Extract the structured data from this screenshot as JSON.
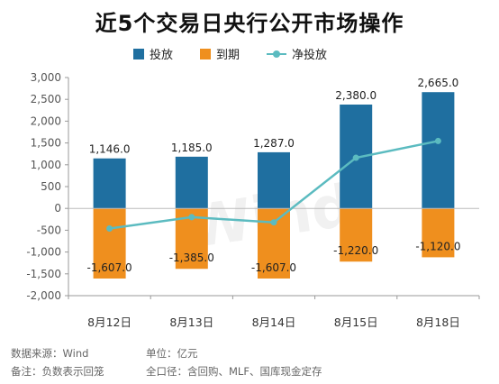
{
  "colors": {
    "invest": "#1f6fa0",
    "maturity": "#ef8f1e",
    "net": "#5bbbc0",
    "grid": "#e6e6e6",
    "axis": "#999999"
  },
  "chart_data": {
    "type": "bar",
    "title": "近5个交易日央行公开市场操作",
    "categories": [
      "8月12日",
      "8月13日",
      "8月14日",
      "8月15日",
      "8月18日"
    ],
    "series": [
      {
        "name": "投放",
        "type": "bar",
        "values": [
          1146.0,
          1185.0,
          1287.0,
          2380.0,
          2665.0
        ],
        "labels": [
          "1,146.0",
          "1,185.0",
          "1,287.0",
          "2,380.0",
          "2,665.0"
        ]
      },
      {
        "name": "到期",
        "type": "bar",
        "values": [
          -1607.0,
          -1385.0,
          -1607.0,
          -1220.0,
          -1120.0
        ],
        "labels": [
          "-1,607.0",
          "-1,385.0",
          "-1,607.0",
          "-1,220.0",
          "-1,120.0"
        ]
      },
      {
        "name": "净投放",
        "type": "line",
        "values": [
          -461.0,
          -200.0,
          -320.0,
          1160.0,
          1545.0
        ]
      }
    ],
    "ylim": [
      -2000,
      3000
    ],
    "yticks": [
      3000,
      2500,
      2000,
      1500,
      1000,
      500,
      0,
      -500,
      -1000,
      -1500,
      -2000
    ],
    "ytick_labels": [
      "3,000",
      "2,500",
      "2,000",
      "1,500",
      "1,000",
      "500",
      "0",
      "-500",
      "-1,000",
      "-1,500",
      "-2,000"
    ],
    "legend": "top-center",
    "grid": false
  },
  "watermark": "Wind",
  "footer": {
    "source": "数据来源：Wind",
    "unit": "单位：亿元",
    "note": "备注：负数表示回笼",
    "scope": "全口径：含回购、MLF、国库现金定存"
  }
}
